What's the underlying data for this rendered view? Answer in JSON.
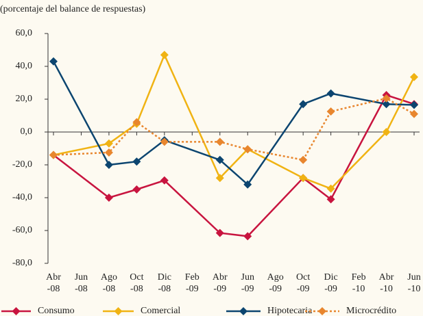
{
  "chart_data": {
    "type": "line",
    "subtitle": "(porcentaje del balance de respuestas)",
    "x": [
      0,
      4,
      6,
      8,
      12,
      14,
      18,
      20,
      24,
      26
    ],
    "xlim": [
      0,
      26
    ],
    "xticks": [
      {
        "value": 0,
        "label": "Abr\n-08"
      },
      {
        "value": 2,
        "label": "Jun\n-08"
      },
      {
        "value": 4,
        "label": "Ago\n-08"
      },
      {
        "value": 6,
        "label": "Oct\n-08"
      },
      {
        "value": 8,
        "label": "Dic\n-08"
      },
      {
        "value": 10,
        "label": "Feb\n-09"
      },
      {
        "value": 12,
        "label": "Abr\n-09"
      },
      {
        "value": 14,
        "label": "Jun\n-09"
      },
      {
        "value": 16,
        "label": "Ago\n-09"
      },
      {
        "value": 18,
        "label": "Oct\n-09"
      },
      {
        "value": 20,
        "label": "Dic\n-09"
      },
      {
        "value": 22,
        "label": "Feb\n-10"
      },
      {
        "value": 24,
        "label": "Abr\n-10"
      },
      {
        "value": 26,
        "label": "Jun\n-10"
      }
    ],
    "ylim": [
      -80,
      60
    ],
    "yticks": [
      {
        "value": -80,
        "label": "-80,0"
      },
      {
        "value": -60,
        "label": "-60,0"
      },
      {
        "value": -40,
        "label": "-40,0"
      },
      {
        "value": -20,
        "label": "-20,0"
      },
      {
        "value": 0,
        "label": "0,0"
      },
      {
        "value": 20,
        "label": "20,0"
      },
      {
        "value": 40,
        "label": "40,0"
      },
      {
        "value": 60,
        "label": "60,0"
      }
    ],
    "series": [
      {
        "name": "Consumo",
        "color": "#c8143f",
        "dash": false,
        "values": [
          -14,
          -40,
          -35,
          -29.5,
          -61.5,
          -63.5,
          -28,
          -41,
          22.5,
          17
        ]
      },
      {
        "name": "Comercial",
        "color": "#f0b313",
        "dash": false,
        "values": [
          -14,
          -7,
          5,
          47,
          -28,
          -10.5,
          -28,
          -34.5,
          0,
          33.5
        ]
      },
      {
        "name": "Hipotecaria",
        "color": "#0c4570",
        "dash": false,
        "values": [
          43,
          -20,
          -18,
          -5,
          -17,
          -32,
          17,
          23.5,
          17,
          16.5
        ]
      },
      {
        "name": "Microcrédito",
        "color": "#e8862e",
        "dash": true,
        "values": [
          -14,
          -12.5,
          6,
          -6,
          -6,
          -10.5,
          -17,
          12.5,
          20.5,
          11
        ]
      }
    ]
  }
}
